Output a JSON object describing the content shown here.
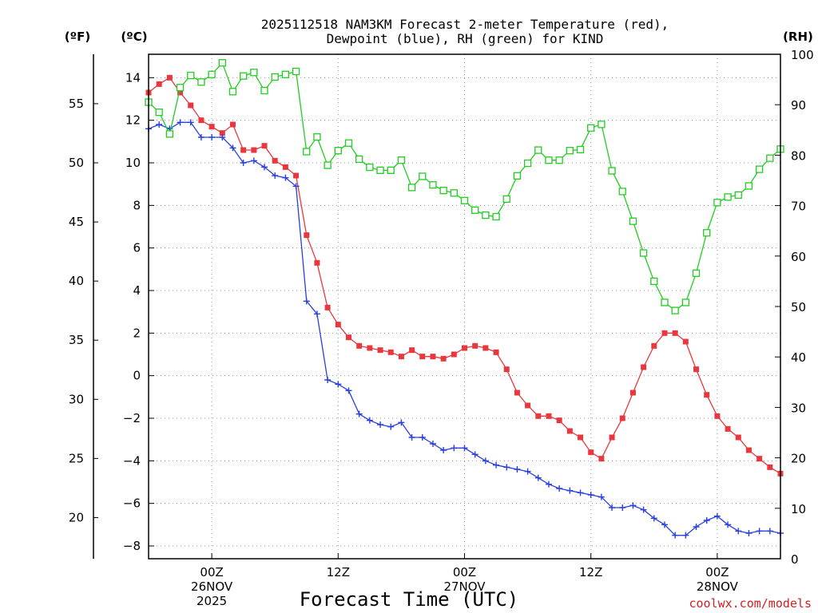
{
  "chart_data": {
    "type": "line",
    "title_line1": "2025112518 NAM3KM Forecast 2-meter Temperature (red),",
    "title_line2": "Dewpoint (blue), RH (green) for KIND",
    "xlabel": "Forecast Time (UTC)",
    "credit": "coolwx.com/models",
    "unit_f": "(ºF)",
    "unit_c": "(ºC)",
    "unit_rh": "(RH)",
    "xlim": [
      0,
      60
    ],
    "ylim_c": [
      -8.6,
      15.1
    ],
    "ylim_rh": [
      0,
      100
    ],
    "y_ticks_c": [
      -8,
      -6,
      -4,
      -2,
      0,
      2,
      4,
      6,
      8,
      10,
      12,
      14
    ],
    "y_ticks_f": [
      20,
      25,
      30,
      35,
      40,
      45,
      50,
      55
    ],
    "y_ticks_rh": [
      0,
      10,
      20,
      30,
      40,
      50,
      60,
      70,
      80,
      90,
      100
    ],
    "x_ticks": [
      {
        "x": 6,
        "lines": [
          "00Z",
          "26NOV",
          "2025"
        ]
      },
      {
        "x": 18,
        "lines": [
          "12Z"
        ]
      },
      {
        "x": 30,
        "lines": [
          "00Z",
          "27NOV"
        ]
      },
      {
        "x": 42,
        "lines": [
          "12Z"
        ]
      },
      {
        "x": 54,
        "lines": [
          "00Z",
          "28NOV"
        ]
      }
    ],
    "series": [
      {
        "name": "Temperature (C)",
        "color": "#e8383d",
        "marker": "filled-square",
        "axis": "C",
        "values": [
          13.3,
          13.7,
          14.0,
          13.3,
          12.7,
          12.0,
          11.7,
          11.4,
          11.8,
          10.6,
          10.6,
          10.8,
          10.1,
          9.8,
          9.4,
          6.6,
          5.3,
          3.2,
          2.4,
          1.8,
          1.4,
          1.3,
          1.2,
          1.1,
          0.9,
          1.2,
          0.9,
          0.9,
          0.8,
          1.0,
          1.3,
          1.4,
          1.3,
          1.1,
          0.3,
          -0.8,
          -1.4,
          -1.9,
          -1.9,
          -2.1,
          -2.6,
          -2.9,
          -3.6,
          -3.9,
          -2.9,
          -2.0,
          -0.8,
          0.4,
          1.4,
          2.0,
          2.0,
          1.6,
          0.3,
          -0.9,
          -1.9,
          -2.5,
          -2.9,
          -3.5,
          -3.9,
          -4.3,
          -4.6
        ]
      },
      {
        "name": "Dewpoint (C)",
        "color": "#2840e0",
        "marker": "plus",
        "axis": "C",
        "values": [
          11.6,
          11.8,
          11.6,
          11.9,
          11.9,
          11.2,
          11.2,
          11.2,
          10.7,
          10.0,
          10.1,
          9.8,
          9.4,
          9.3,
          8.9,
          3.5,
          2.9,
          -0.2,
          -0.4,
          -0.7,
          -1.8,
          -2.1,
          -2.3,
          -2.4,
          -2.2,
          -2.9,
          -2.9,
          -3.2,
          -3.5,
          -3.4,
          -3.4,
          -3.7,
          -4.0,
          -4.2,
          -4.3,
          -4.4,
          -4.5,
          -4.8,
          -5.1,
          -5.3,
          -5.4,
          -5.5,
          -5.6,
          -5.7,
          -6.2,
          -6.2,
          -6.1,
          -6.3,
          -6.7,
          -7.0,
          -7.5,
          -7.5,
          -7.1,
          -6.8,
          -6.6,
          -7.0,
          -7.3,
          -7.4,
          -7.3,
          -7.3,
          -7.4
        ]
      },
      {
        "name": "RH (%)",
        "color": "#22cc22",
        "marker": "open-square",
        "axis": "RH",
        "values": [
          90.5,
          88.5,
          84.2,
          93.4,
          95.8,
          94.5,
          96.0,
          98.3,
          92.6,
          95.7,
          96.4,
          92.8,
          95.5,
          96.0,
          96.6,
          80.7,
          83.6,
          78.0,
          80.9,
          82.4,
          79.2,
          77.6,
          77.0,
          77.0,
          79.0,
          73.6,
          75.8,
          74.1,
          73.0,
          72.5,
          71.0,
          69.1,
          68.1,
          67.8,
          71.3,
          75.9,
          78.4,
          81.0,
          79.0,
          79.0,
          80.9,
          81.1,
          85.4,
          86.1,
          76.9,
          72.8,
          66.9,
          60.6,
          55.0,
          50.8,
          49.2,
          50.8,
          56.6,
          64.6,
          70.6,
          71.7,
          72.1,
          73.9,
          77.2,
          79.4,
          81.2
        ]
      }
    ]
  }
}
